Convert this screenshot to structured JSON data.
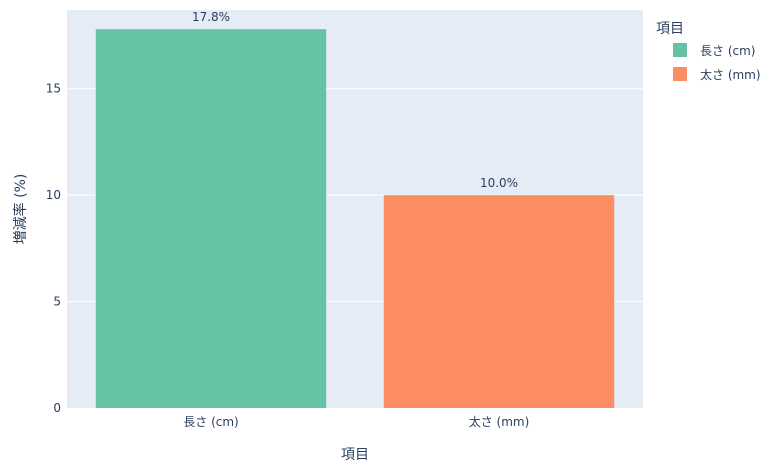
{
  "chart_data": {
    "type": "bar",
    "title": "",
    "xlabel": "項目",
    "ylabel": "増減率 (%)",
    "categories": [
      "長さ (cm)",
      "太さ (mm)"
    ],
    "values": [
      17.8,
      10.0
    ],
    "data_labels": [
      "17.8%",
      "10.0%"
    ],
    "ylim": [
      0,
      18.7
    ],
    "yticks": [
      0,
      5,
      10,
      15
    ],
    "ytick_labels": [
      "0",
      "5",
      "10",
      "15"
    ],
    "grid": true,
    "colors": [
      "#66c2a5",
      "#fc8d62"
    ],
    "legend": {
      "title": "項目",
      "placement": "top-right",
      "entries": [
        "長さ (cm)",
        "太さ (mm)"
      ]
    }
  },
  "style": {
    "plot_background": "#e5ecf6",
    "gridline_color": "#ffffff",
    "text_color": "#2a3f5f"
  }
}
